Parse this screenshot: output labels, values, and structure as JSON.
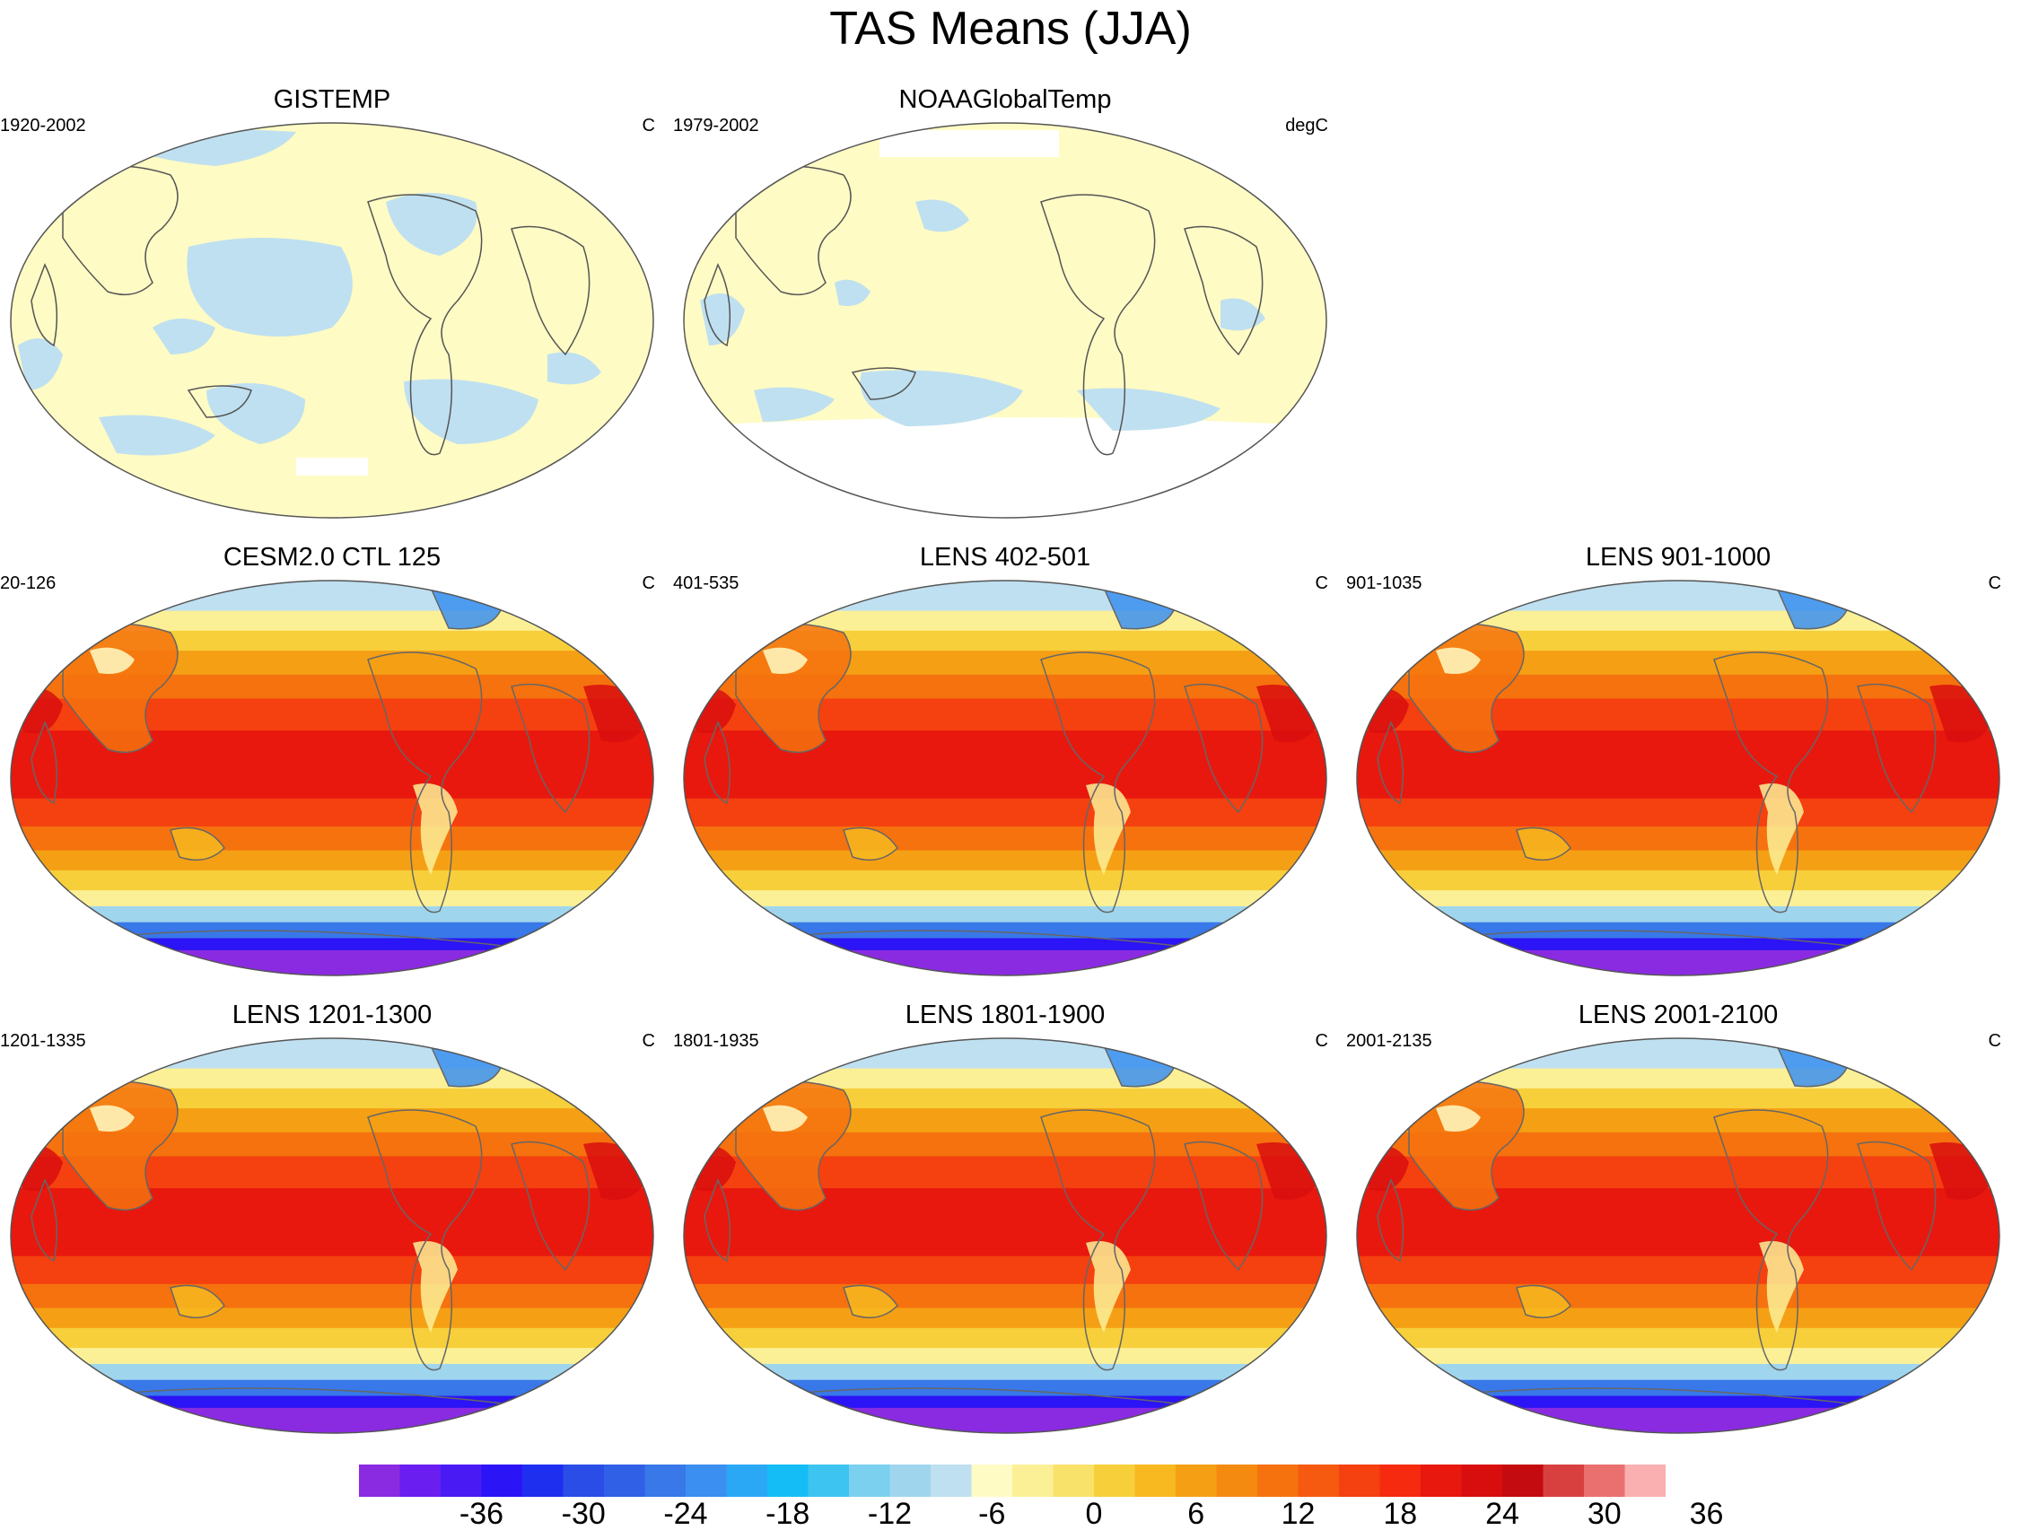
{
  "figure": {
    "title": "TAS Means (JJA)"
  },
  "panels": [
    {
      "id": "gistemp",
      "title": "GISTEMP",
      "period": "1920-2002",
      "units": "C",
      "type": "obs_anomaly"
    },
    {
      "id": "noaa",
      "title": "NOAAGlobalTemp",
      "period": "1979-2002",
      "units": "degC",
      "type": "obs_anomaly"
    },
    {
      "id": "cesm",
      "title": "CESM2.0 CTL 125",
      "period": "20-126",
      "units": "C",
      "type": "model"
    },
    {
      "id": "lens402",
      "title": "LENS 402-501",
      "period": "401-535",
      "units": "C",
      "type": "model"
    },
    {
      "id": "lens901",
      "title": "LENS 901-1000",
      "period": "901-1035",
      "units": "C",
      "type": "model"
    },
    {
      "id": "lens1201",
      "title": "LENS 1201-1300",
      "period": "1201-1335",
      "units": "C",
      "type": "model"
    },
    {
      "id": "lens1801",
      "title": "LENS 1801-1900",
      "period": "1801-1935",
      "units": "C",
      "type": "model"
    },
    {
      "id": "lens2001",
      "title": "LENS 2001-2100",
      "period": "2001-2135",
      "units": "C",
      "type": "model"
    }
  ],
  "colorbar": {
    "tick_labels": [
      "-36",
      "-30",
      "-24",
      "-18",
      "-12",
      "-6",
      "0",
      "6",
      "12",
      "18",
      "24",
      "30",
      "36"
    ],
    "colors": [
      "#8a2be2",
      "#6a1ef0",
      "#4a1af5",
      "#2b14f5",
      "#1e2ff0",
      "#2a4de8",
      "#3060e6",
      "#3878e8",
      "#3a8ff0",
      "#2aa8f5",
      "#14bdf5",
      "#3ec4f0",
      "#7ad0ee",
      "#9fd6ee",
      "#bfe0f0",
      "#fffbc4",
      "#fbf096",
      "#f9e26a",
      "#f7cf3a",
      "#f7b820",
      "#f5a014",
      "#f58a10",
      "#f5720e",
      "#f55a10",
      "#f54010",
      "#f52a0e",
      "#e8180e",
      "#d80e0e",
      "#c40c10",
      "#d84040",
      "#ea7070",
      "#fab0b0"
    ]
  }
}
